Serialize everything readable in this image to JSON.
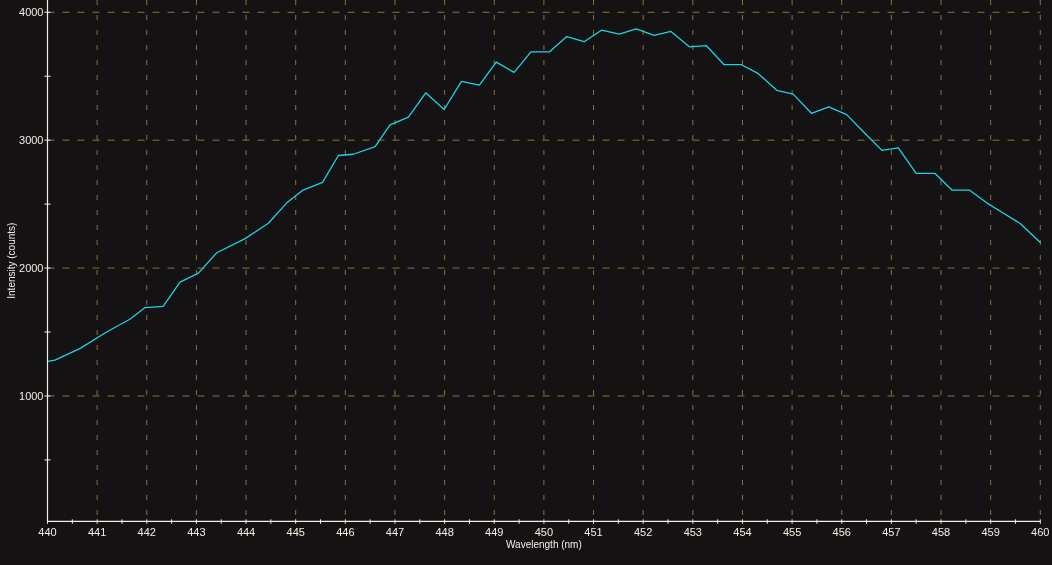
{
  "chart_data": {
    "type": "line",
    "xlabel": "Wavelength (nm)",
    "ylabel": "Intensity (counts)",
    "xlim": [
      440,
      460
    ],
    "ylim": [
      20,
      4096
    ],
    "xticks": [
      440,
      {
        "value": 440.5,
        "label": null
      },
      441,
      {
        "value": 441.5,
        "label": null
      },
      442,
      {
        "value": 442.5,
        "label": null
      },
      443,
      {
        "value": 443.5,
        "label": null
      },
      444,
      {
        "value": 444.5,
        "label": null
      },
      445,
      {
        "value": 445.5,
        "label": null
      },
      446,
      {
        "value": 446.5,
        "label": null
      },
      447,
      {
        "value": 447.5,
        "label": null
      },
      448,
      {
        "value": 448.5,
        "label": null
      },
      449,
      {
        "value": 449.5,
        "label": null
      },
      450,
      {
        "value": 450.5,
        "label": null
      },
      451,
      {
        "value": 451.5,
        "label": null
      },
      452,
      {
        "value": 452.5,
        "label": null
      },
      453,
      {
        "value": 453.5,
        "label": null
      },
      454,
      {
        "value": 454.5,
        "label": null
      },
      455,
      {
        "value": 455.5,
        "label": null
      },
      456,
      {
        "value": 456.5,
        "label": null
      },
      457,
      {
        "value": 457.5,
        "label": null
      },
      458,
      {
        "value": 458.5,
        "label": null
      },
      459,
      {
        "value": 459.5,
        "label": null
      },
      460
    ],
    "yticks": [
      {
        "value": 500,
        "label": null
      },
      1000,
      {
        "value": 1500,
        "label": null
      },
      2000,
      {
        "value": 2500,
        "label": null
      },
      3000,
      {
        "value": 3500,
        "label": null
      },
      4000
    ],
    "grid": true,
    "marker": "none",
    "line_style": "solid",
    "x": [
      440,
      440.15,
      440.65,
      441.19,
      441.66,
      441.96,
      442.33,
      442.67,
      443.04,
      443.41,
      443.98,
      444.45,
      444.82,
      445.15,
      445.54,
      445.86,
      446.16,
      446.6,
      446.9,
      447.27,
      447.62,
      447.99,
      448.34,
      448.7,
      449.04,
      449.4,
      449.74,
      450.11,
      450.46,
      450.81,
      451.16,
      451.52,
      451.86,
      452.22,
      452.56,
      452.93,
      453.27,
      453.63,
      453.98,
      454.32,
      454.69,
      455.02,
      455.39,
      455.74,
      456.1,
      456.45,
      456.81,
      457.14,
      457.5,
      457.88,
      458.22,
      458.57,
      458.92,
      459.25,
      459.59,
      460
    ],
    "series": [
      {
        "color": "#1fd3e3",
        "values": [
          1270,
          1280,
          1370,
          1500,
          1600,
          1690,
          1700,
          1890,
          1960,
          2120,
          2230,
          2350,
          2510,
          2610,
          2670,
          2880,
          2890,
          2950,
          3120,
          3180,
          3370,
          3240,
          3460,
          3430,
          3610,
          3530,
          3690,
          3690,
          3810,
          3770,
          3860,
          3830,
          3870,
          3820,
          3850,
          3730,
          3740,
          3590,
          3590,
          3520,
          3390,
          3360,
          3210,
          3260,
          3200,
          3060,
          2920,
          2940,
          2740,
          2740,
          2610,
          2610,
          2510,
          2430,
          2350,
          2200
        ]
      }
    ]
  }
}
